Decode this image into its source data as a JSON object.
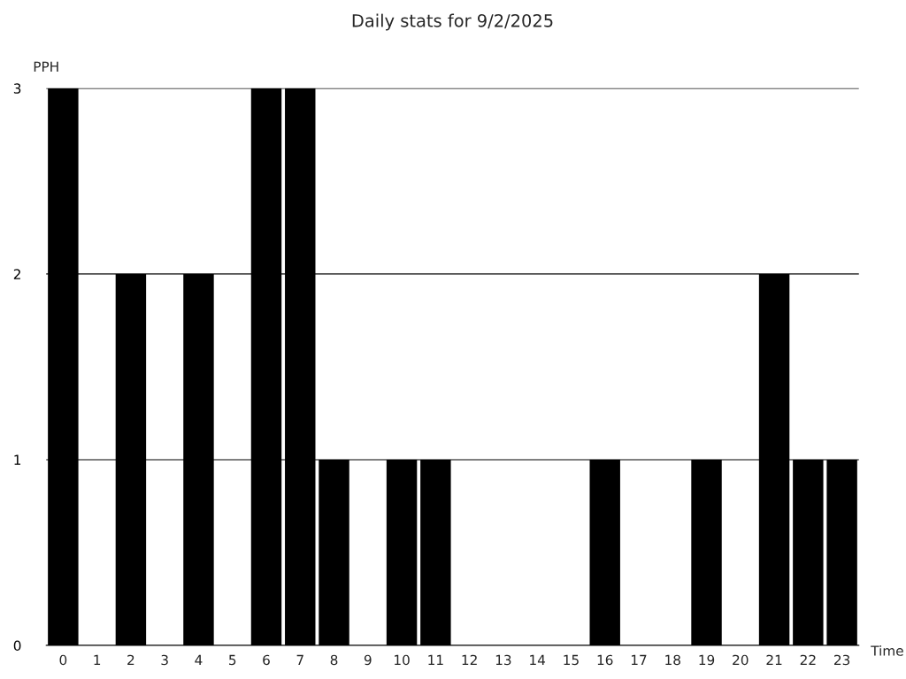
{
  "chart_data": {
    "type": "bar",
    "title": "Daily stats for 9/2/2025",
    "xlabel": "Time",
    "ylabel": "PPH",
    "categories": [
      "0",
      "1",
      "2",
      "3",
      "4",
      "5",
      "6",
      "7",
      "8",
      "9",
      "10",
      "11",
      "12",
      "13",
      "14",
      "15",
      "16",
      "17",
      "18",
      "19",
      "20",
      "21",
      "22",
      "23"
    ],
    "values": [
      3,
      0,
      2,
      0,
      2,
      0,
      3,
      3,
      1,
      0,
      1,
      1,
      0,
      0,
      0,
      0,
      1,
      0,
      0,
      1,
      0,
      2,
      1,
      1
    ],
    "color": "#000000",
    "ylim": [
      0,
      3
    ],
    "yticks": [
      0,
      1,
      2,
      3
    ],
    "grid": "y",
    "legend": false
  }
}
